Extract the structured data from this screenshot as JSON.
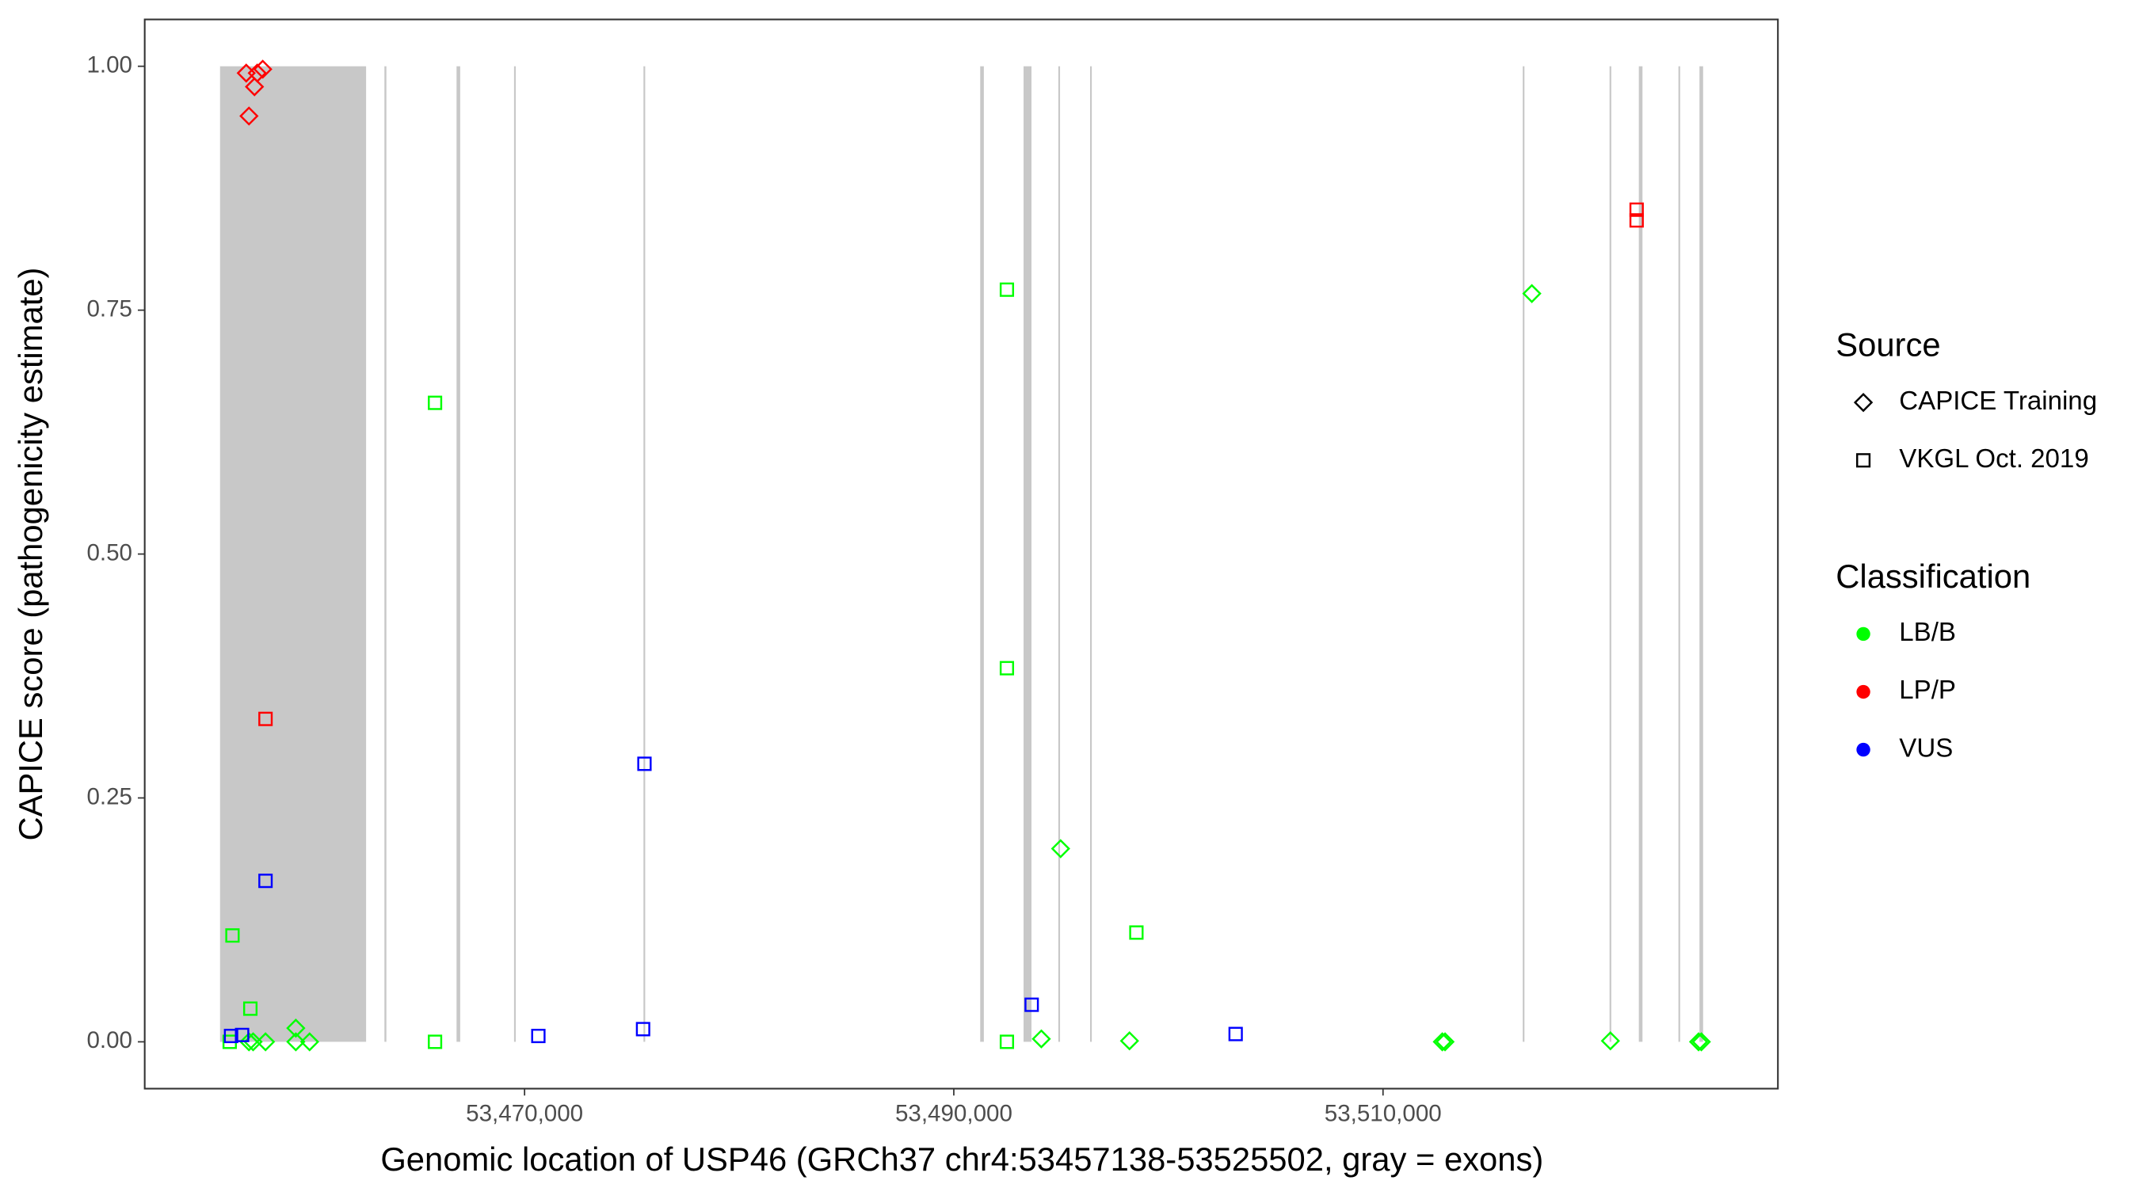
{
  "chart_data": {
    "type": "scatter",
    "xlabel": "Genomic location of USP46 (GRCh37 chr4:53457138-53525502, gray = exons)",
    "ylabel": "CAPICE score (pathogenicity estimate)",
    "xlim": [
      53452300,
      53528400
    ],
    "ylim": [
      -0.048,
      1.048
    ],
    "xticks": [
      {
        "value": 53470000,
        "label": "53,470,000"
      },
      {
        "value": 53490000,
        "label": "53,490,000"
      },
      {
        "value": 53510000,
        "label": "53,510,000"
      }
    ],
    "yticks": [
      {
        "value": 0,
        "label": "0.00"
      },
      {
        "value": 0.25,
        "label": "0.25"
      },
      {
        "value": 0.5,
        "label": "0.50"
      },
      {
        "value": 0.75,
        "label": "0.75"
      },
      {
        "value": 1,
        "label": "1.00"
      }
    ],
    "exon_color": "#c8c8c8",
    "exons": [
      [
        53455810,
        53462616
      ],
      [
        53463470,
        53463560
      ],
      [
        53466830,
        53467000
      ],
      [
        53469510,
        53469590
      ],
      [
        53475540,
        53475620
      ],
      [
        53491230,
        53491400
      ],
      [
        53493250,
        53493620
      ],
      [
        53494870,
        53494950
      ],
      [
        53496350,
        53496430
      ],
      [
        53516510,
        53516590
      ],
      [
        53520555,
        53520635
      ],
      [
        53521920,
        53522090
      ],
      [
        53523765,
        53523845
      ],
      [
        53524745,
        53524915
      ]
    ],
    "series": [
      {
        "shape": "diamond",
        "color": "#ff0000",
        "x": [
          53457030,
          53457543,
          53457800,
          53457415,
          53457158
        ],
        "y": [
          0.993,
          0.993,
          0.997,
          0.979,
          0.949
        ]
      },
      {
        "shape": "diamond",
        "color": "#00ff00",
        "x": [
          53457158,
          53457351,
          53457929,
          53459341,
          53459341,
          53459983,
          53494078,
          53494977,
          53498187,
          53512762,
          53512890,
          53516935,
          53520595,
          53524704,
          53524833
        ],
        "y": [
          0,
          0,
          0,
          0.014,
          0,
          0,
          0.003,
          0.198,
          0.001,
          0,
          0,
          0.767,
          0.001,
          0,
          0
        ]
      },
      {
        "shape": "square",
        "color": "#00ff00",
        "x": [
          53456260,
          53456389,
          53457222,
          53465827,
          53465827,
          53492474,
          53492474,
          53492474,
          53498508
        ],
        "y": [
          0,
          0.109,
          0.034,
          0.655,
          0,
          0.771,
          0.383,
          0,
          0.112
        ]
      },
      {
        "shape": "square",
        "color": "#ff0000",
        "x": [
          53457929,
          53521817,
          53521817
        ],
        "y": [
          0.331,
          0.853,
          0.842
        ]
      },
      {
        "shape": "square",
        "color": "#0000ff",
        "x": [
          53456324,
          53456837,
          53457929,
          53470642,
          53475522,
          53475586,
          53493629,
          53503133
        ],
        "y": [
          0.006,
          0.007,
          0.165,
          0.006,
          0.013,
          0.285,
          0.038,
          0.008
        ]
      }
    ],
    "legends": [
      {
        "title": "Source",
        "entries": [
          {
            "label": "CAPICE Training",
            "shape": "diamond"
          },
          {
            "label": "VKGL Oct. 2019",
            "shape": "square"
          }
        ]
      },
      {
        "title": "Classification",
        "entries": [
          {
            "label": "LB/B",
            "color": "#00ff00"
          },
          {
            "label": "LP/P",
            "color": "#ff0000"
          },
          {
            "label": "VUS",
            "color": "#0000ff"
          }
        ]
      }
    ]
  }
}
